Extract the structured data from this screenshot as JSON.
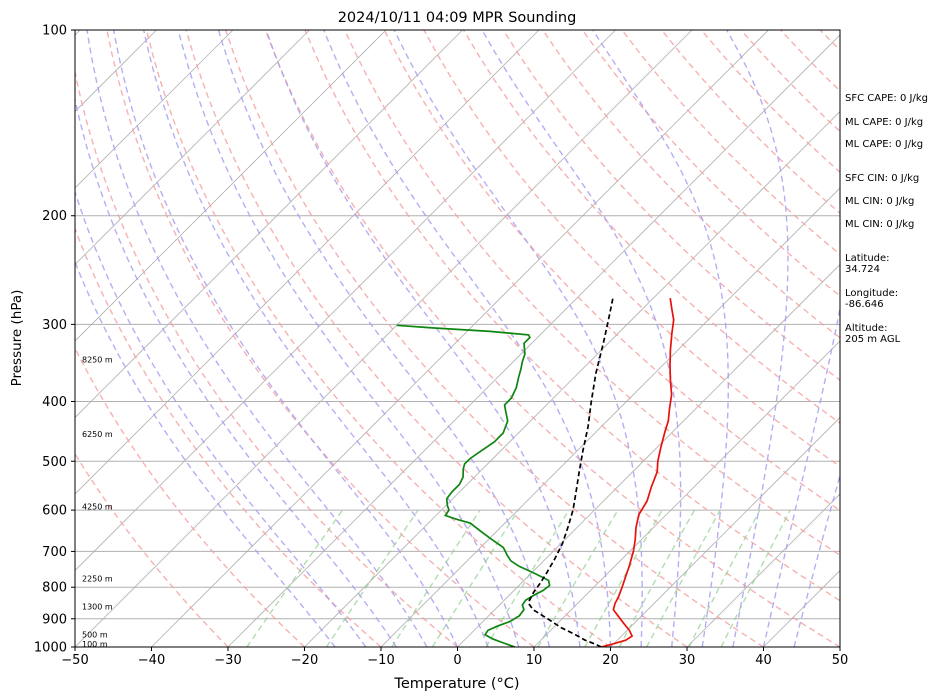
{
  "chart_data": {
    "type": "line",
    "title": "2024/10/11 04:09 MPR Sounding",
    "xlabel": "Temperature (°C)",
    "ylabel": "Pressure (hPa)",
    "xlim": [
      -50,
      50
    ],
    "ylim": [
      1000,
      100
    ],
    "y_scale": "log",
    "x_ticks": [
      "−50",
      "−40",
      "−30",
      "−20",
      "−10",
      "0",
      "10",
      "20",
      "30",
      "40",
      "50"
    ],
    "y_ticks": [
      {
        "p": 100,
        "label": "100"
      },
      {
        "p": 200,
        "label": "200"
      },
      {
        "p": 300,
        "label": "300"
      },
      {
        "p": 400,
        "label": "400"
      },
      {
        "p": 500,
        "label": "500"
      },
      {
        "p": 600,
        "label": "600"
      },
      {
        "p": 700,
        "label": "700"
      },
      {
        "p": 800,
        "label": "800"
      },
      {
        "p": 900,
        "label": "900"
      },
      {
        "p": 1000,
        "label": "1000"
      }
    ],
    "height_labels": [
      {
        "p": 342,
        "text": "8250 m"
      },
      {
        "p": 452,
        "text": "6250 m"
      },
      {
        "p": 592,
        "text": "4250 m"
      },
      {
        "p": 775,
        "text": "2250 m"
      },
      {
        "p": 860,
        "text": "1300 m"
      },
      {
        "p": 955,
        "text": "500 m"
      },
      {
        "p": 988,
        "text": "100 m"
      }
    ],
    "series": [
      {
        "color": "#e8120c",
        "style": "solid",
        "points": [
          [
            1000,
            18.8
          ],
          [
            990,
            19.8
          ],
          [
            975,
            21.1
          ],
          [
            960,
            21.4
          ],
          [
            940,
            20.3
          ],
          [
            915,
            18.6
          ],
          [
            890,
            16.9
          ],
          [
            870,
            15.5
          ],
          [
            850,
            14.9
          ],
          [
            830,
            14.5
          ],
          [
            800,
            13.7
          ],
          [
            770,
            12.8
          ],
          [
            740,
            11.9
          ],
          [
            700,
            10.5
          ],
          [
            670,
            9.2
          ],
          [
            640,
            7.7
          ],
          [
            610,
            6.4
          ],
          [
            580,
            5.7
          ],
          [
            550,
            4.4
          ],
          [
            520,
            3.2
          ],
          [
            500,
            1.9
          ],
          [
            475,
            0.5
          ],
          [
            450,
            -0.9
          ],
          [
            430,
            -2.0
          ],
          [
            410,
            -3.5
          ],
          [
            390,
            -5.0
          ],
          [
            370,
            -7.0
          ],
          [
            350,
            -9.0
          ],
          [
            330,
            -11.0
          ],
          [
            310,
            -13.0
          ],
          [
            295,
            -14.5
          ],
          [
            283,
            -16.2
          ],
          [
            272,
            -17.8
          ]
        ]
      },
      {
        "color": "#0d8510",
        "style": "solid",
        "points": [
          [
            1000,
            7.5
          ],
          [
            985,
            5.5
          ],
          [
            970,
            3.5
          ],
          [
            955,
            2.0
          ],
          [
            940,
            1.8
          ],
          [
            925,
            2.5
          ],
          [
            910,
            3.5
          ],
          [
            890,
            4.0
          ],
          [
            870,
            3.8
          ],
          [
            855,
            3.0
          ],
          [
            840,
            2.8
          ],
          [
            825,
            3.2
          ],
          [
            810,
            3.8
          ],
          [
            795,
            4.0
          ],
          [
            780,
            3.2
          ],
          [
            760,
            0.5
          ],
          [
            740,
            -2.5
          ],
          [
            725,
            -4.3
          ],
          [
            710,
            -5.5
          ],
          [
            690,
            -7.0
          ],
          [
            670,
            -9.5
          ],
          [
            650,
            -12.0
          ],
          [
            630,
            -14.5
          ],
          [
            620,
            -17.0
          ],
          [
            612,
            -18.8
          ],
          [
            600,
            -19.0
          ],
          [
            590,
            -19.8
          ],
          [
            575,
            -20.8
          ],
          [
            560,
            -21.0
          ],
          [
            545,
            -21.0
          ],
          [
            530,
            -21.5
          ],
          [
            515,
            -22.5
          ],
          [
            505,
            -23.0
          ],
          [
            495,
            -23.0
          ],
          [
            480,
            -22.5
          ],
          [
            465,
            -22.0
          ],
          [
            450,
            -22.0
          ],
          [
            440,
            -22.5
          ],
          [
            430,
            -23.0
          ],
          [
            415,
            -24.5
          ],
          [
            405,
            -25.5
          ],
          [
            395,
            -25.5
          ],
          [
            380,
            -26.2
          ],
          [
            365,
            -27.3
          ],
          [
            355,
            -28.0
          ],
          [
            345,
            -28.8
          ],
          [
            335,
            -29.5
          ],
          [
            322,
            -31.0
          ],
          [
            315,
            -31.0
          ],
          [
            312,
            -31.5
          ],
          [
            308,
            -37.0
          ],
          [
            304,
            -45.0
          ],
          [
            301,
            -50.0
          ]
        ]
      },
      {
        "color": "#000000",
        "style": "dashed",
        "points": [
          [
            1000,
            18.8
          ],
          [
            990,
            17.7
          ],
          [
            975,
            15.8
          ],
          [
            955,
            13.8
          ],
          [
            930,
            11.0
          ],
          [
            900,
            8.1
          ],
          [
            870,
            5.0
          ],
          [
            850,
            3.6
          ],
          [
            840,
            3.3
          ],
          [
            815,
            2.8
          ],
          [
            790,
            2.5
          ],
          [
            760,
            2.0
          ],
          [
            720,
            1.2
          ],
          [
            680,
            0.2
          ],
          [
            640,
            -1.2
          ],
          [
            600,
            -2.8
          ],
          [
            560,
            -4.8
          ],
          [
            520,
            -7.0
          ],
          [
            480,
            -9.3
          ],
          [
            440,
            -11.7
          ],
          [
            400,
            -14.6
          ],
          [
            360,
            -17.7
          ],
          [
            320,
            -20.8
          ],
          [
            290,
            -23.5
          ],
          [
            270,
            -25.5
          ]
        ]
      }
    ]
  },
  "info_panel": {
    "sfc_cape": "SFC CAPE: 0 J/kg",
    "ml_cape_1": "ML CAPE: 0 J/kg",
    "ml_cape_2": "ML CAPE: 0 J/kg",
    "sfc_cin": "SFC CIN: 0 J/kg",
    "ml_cin_1": "ML CIN: 0 J/kg",
    "ml_cin_2": "ML CIN: 0 J/kg",
    "latitude_label": "Latitude:",
    "latitude_value": "34.724",
    "longitude_label": "Longitude:",
    "longitude_value": "-86.646",
    "altitude_label": "Altitude:",
    "altitude_value": "205 m AGL"
  },
  "colors": {
    "isotherm": "#b0b0b0",
    "dry_adiabat": "#f5a3a3",
    "moist_adiabat": "#a8a0f0",
    "mixing_ratio": "#8fcf8f"
  }
}
